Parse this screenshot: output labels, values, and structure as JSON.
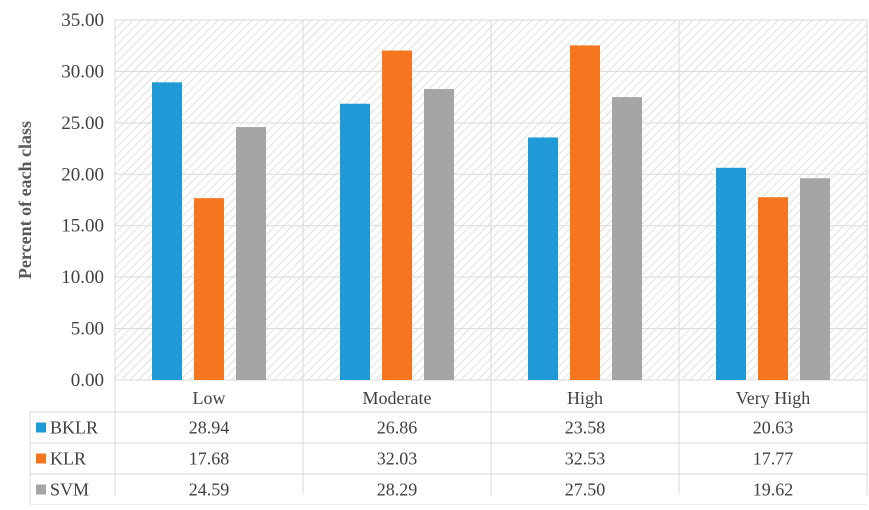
{
  "chart_data": {
    "type": "bar",
    "title": "",
    "xlabel": "",
    "ylabel": "Percent of each class",
    "ylim": [
      0,
      35
    ],
    "ytick_step": 5,
    "ytick_labels": [
      "0.00",
      "5.00",
      "10.00",
      "15.00",
      "20.00",
      "25.00",
      "30.00",
      "35.00"
    ],
    "grid": true,
    "legend": "data-table",
    "categories": [
      "Low",
      "Moderate",
      "High",
      "Very High"
    ],
    "series": [
      {
        "name": "BKLR",
        "color": "#1f9ad6",
        "values": [
          28.94,
          26.86,
          23.58,
          20.63
        ],
        "labels": [
          "28.94",
          "26.86",
          "23.58",
          "20.63"
        ]
      },
      {
        "name": "KLR",
        "color": "#f5761f",
        "values": [
          17.68,
          32.03,
          32.53,
          17.77
        ],
        "labels": [
          "17.68",
          "32.03",
          "32.53",
          "17.77"
        ]
      },
      {
        "name": "SVM",
        "color": "#a5a5a5",
        "values": [
          24.59,
          28.29,
          27.5,
          19.62
        ],
        "labels": [
          "24.59",
          "28.29",
          "27.50",
          "19.62"
        ]
      }
    ]
  }
}
